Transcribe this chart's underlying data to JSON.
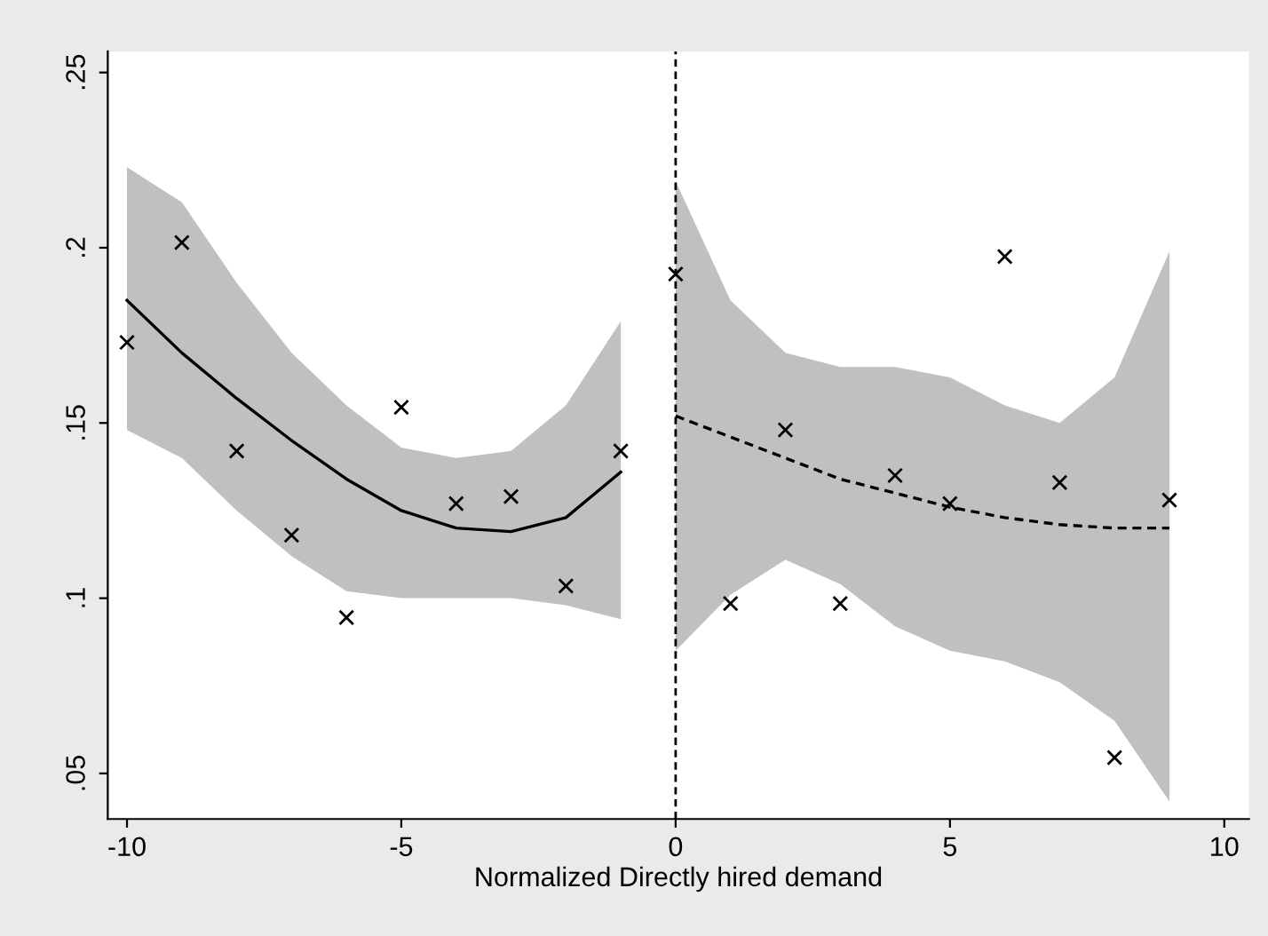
{
  "chart_data": {
    "type": "scatter",
    "xlabel": "Normalized Directly hired demand",
    "xlim": [
      -10.35,
      10.45
    ],
    "xticks": [
      {
        "value": -10,
        "label": "-10"
      },
      {
        "value": -5,
        "label": "-5"
      },
      0,
      5,
      10
    ],
    "ylim": [
      0.037,
      0.256
    ],
    "yticks": [
      {
        "value": 0.05,
        "label": ".05"
      },
      {
        "value": 0.1,
        "label": ".1"
      },
      {
        "value": 0.15,
        "label": ".15"
      },
      {
        "value": 0.2,
        "label": ".2"
      },
      {
        "value": 0.25,
        "label": ".25"
      }
    ],
    "grid": false,
    "series": [
      {
        "type": "line",
        "color": "#000000",
        "line_style": "solid",
        "marker": "none",
        "x": [
          -10,
          -9,
          -8,
          -7,
          -6,
          -5,
          -4,
          -3,
          -2,
          -1
        ],
        "values": [
          0.185,
          0.17,
          0.157,
          0.145,
          0.134,
          0.125,
          0.12,
          0.119,
          0.123,
          0.136
        ],
        "lower": [
          0.148,
          0.14,
          0.125,
          0.112,
          0.102,
          0.1,
          0.1,
          0.1,
          0.098,
          0.094
        ],
        "upper": [
          0.223,
          0.213,
          0.19,
          0.17,
          0.155,
          0.143,
          0.14,
          0.142,
          0.155,
          0.179
        ]
      },
      {
        "type": "line",
        "color": "#000000",
        "line_style": "dashed",
        "marker": "none",
        "x": [
          0,
          1,
          2,
          3,
          4,
          5,
          6,
          7,
          8,
          9
        ],
        "values": [
          0.152,
          0.146,
          0.14,
          0.134,
          0.13,
          0.126,
          0.123,
          0.121,
          0.12,
          0.12
        ],
        "lower": [
          0.085,
          0.101,
          0.111,
          0.104,
          0.092,
          0.085,
          0.082,
          0.076,
          0.065,
          0.042
        ],
        "upper": [
          0.219,
          0.185,
          0.17,
          0.166,
          0.166,
          0.163,
          0.155,
          0.15,
          0.163,
          0.199
        ]
      },
      {
        "color": "#000000",
        "marker": "cross",
        "x": [
          -10,
          -9,
          -8,
          -7,
          -6,
          -5,
          -4,
          -3,
          -2,
          -1,
          0,
          1,
          2,
          3,
          4,
          5,
          6,
          7,
          8,
          9
        ],
        "values": [
          0.173,
          0.2015,
          0.142,
          0.118,
          0.0945,
          0.1545,
          0.127,
          0.129,
          0.1035,
          0.142,
          0.1925,
          0.0985,
          0.148,
          0.0985,
          0.135,
          0.127,
          0.1975,
          0.133,
          0.0545,
          0.128
        ]
      }
    ],
    "ref_lines": [
      {
        "axis": "x",
        "value": 0,
        "label": null,
        "color": "#000000",
        "line_style": "dashed"
      }
    ]
  }
}
